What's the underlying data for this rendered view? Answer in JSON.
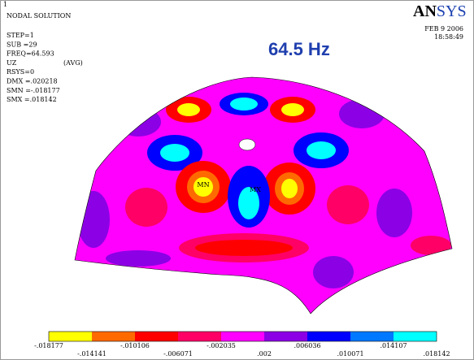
{
  "header": {
    "marker": "1",
    "title": "NODAL SOLUTION",
    "info": [
      "STEP=1",
      "SUB =29",
      "FREQ=64.593",
      "UZ",
      "RSYS=0",
      "DMX =.020218",
      "SMN =-.018177",
      "SMX =.018142"
    ],
    "avg": "(AVG)"
  },
  "logo": {
    "bold": "AN",
    "rest": "SYS"
  },
  "date": "FEB  9 2006",
  "time": "18:58:49",
  "annotation": "64.5 Hz",
  "plot": {
    "min_label": "MN",
    "max_label": "MX"
  },
  "colorbar": {
    "labels": [
      "-.018177",
      "-.014141",
      "-.010106",
      "-.006071",
      "-.002035",
      ".002",
      ".006036",
      ".010071",
      ".014107",
      ".018142"
    ],
    "colors": [
      "#ffff00",
      "#ff6a00",
      "#ff0000",
      "#ff0066",
      "#ff00ff",
      "#8c00e6",
      "#0000ff",
      "#0078ff",
      "#00ffff"
    ]
  }
}
